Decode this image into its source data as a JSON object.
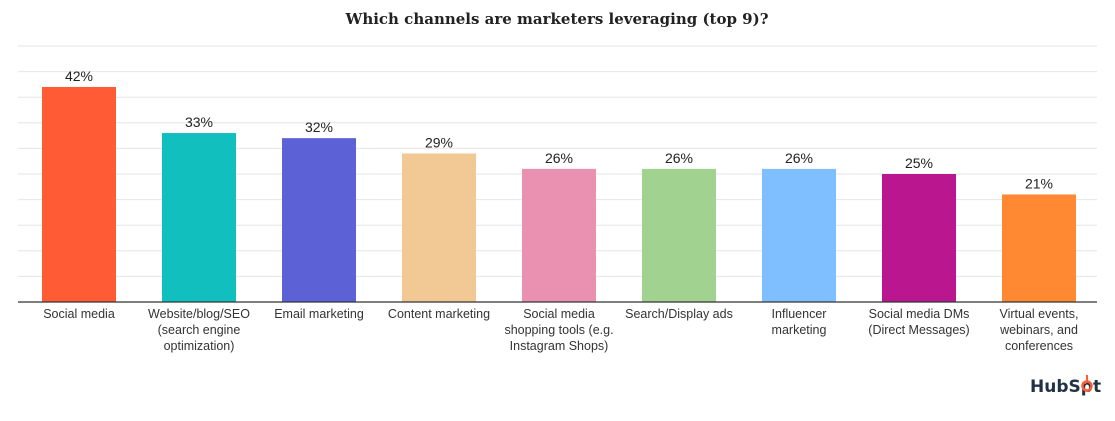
{
  "chart_data": {
    "type": "bar",
    "title": "Which channels are marketers leveraging (top 9)?",
    "categories": [
      [
        "Social media"
      ],
      [
        "Website/blog/SEO",
        "(search engine",
        "optimization)"
      ],
      [
        "Email marketing"
      ],
      [
        "Content marketing"
      ],
      [
        "Social media",
        "shopping tools (e.g.",
        "Instagram Shops)"
      ],
      [
        "Search/Display ads"
      ],
      [
        "Influencer",
        "marketing"
      ],
      [
        "Social media DMs",
        "(Direct Messages)"
      ],
      [
        "Virtual events,",
        "webinars, and",
        "conferences"
      ]
    ],
    "values": [
      42,
      33,
      32,
      29,
      26,
      26,
      26,
      25,
      21
    ],
    "data_labels": [
      "42%",
      "33%",
      "32%",
      "29%",
      "26%",
      "26%",
      "26%",
      "25%",
      "21%"
    ],
    "colors": [
      "#ff5c35",
      "#12bfbf",
      "#5c62d6",
      "#f2c994",
      "#ea90b1",
      "#a2d28f",
      "#7fbfff",
      "#b9168f",
      "#ff8933"
    ],
    "ylim": [
      0,
      50
    ],
    "grid": true,
    "xlabel": "",
    "ylabel": ""
  },
  "branding": {
    "logo_text": "HubSpot",
    "logo_color": "#213343",
    "accent": "#ff5c35"
  }
}
